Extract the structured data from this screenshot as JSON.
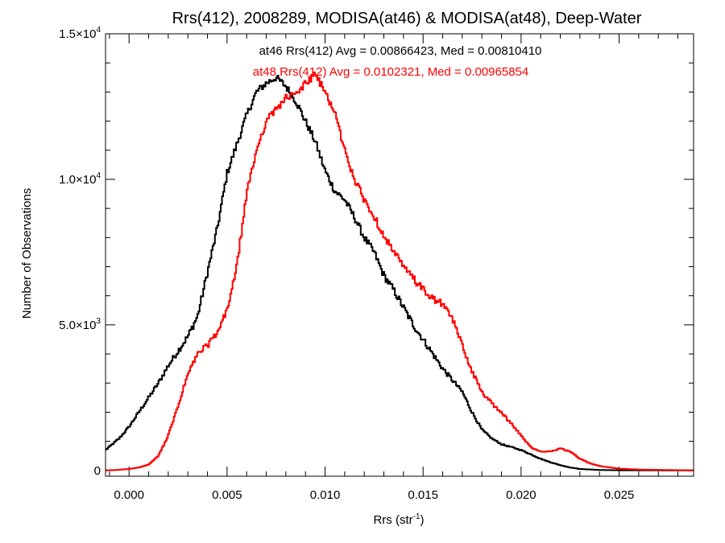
{
  "chart_data": {
    "type": "line",
    "title": "Rrs(412), 2008289, MODISA(at46) & MODISA(at48), Deep-Water",
    "xlabel": {
      "text": "Rrs (str",
      "sup": "-1",
      "tail": ")"
    },
    "ylabel": "Number of Observations",
    "xlim": [
      -0.0012,
      0.0288
    ],
    "ylim": [
      -200,
      15000
    ],
    "xticks": [
      {
        "value": 0.0,
        "label": "0.000"
      },
      {
        "value": 0.005,
        "label": "0.005"
      },
      {
        "value": 0.01,
        "label": "0.010"
      },
      {
        "value": 0.015,
        "label": "0.015"
      },
      {
        "value": 0.02,
        "label": "0.020"
      },
      {
        "value": 0.025,
        "label": "0.025"
      }
    ],
    "yticks": [
      {
        "value": 0,
        "mantissa": "0",
        "exp": ""
      },
      {
        "value": 5000,
        "mantissa": "5.0×10",
        "exp": "3"
      },
      {
        "value": 10000,
        "mantissa": "1.0×10",
        "exp": "4"
      },
      {
        "value": 15000,
        "mantissa": "1.5×10",
        "exp": "4"
      }
    ],
    "annotations": [
      {
        "text": "at46 Rrs(412) Avg = 0.00866423, Med = 0.00810410",
        "color": "#000000"
      },
      {
        "text": "at48 Rrs(412) Avg = 0.0102321, Med = 0.00965854",
        "color": "#ff0000"
      }
    ],
    "series": [
      {
        "color": "#000000",
        "points": [
          [
            -0.0012,
            700
          ],
          [
            -0.0005,
            1100
          ],
          [
            0.0,
            1500
          ],
          [
            0.0005,
            2000
          ],
          [
            0.001,
            2500
          ],
          [
            0.0015,
            3000
          ],
          [
            0.002,
            3600
          ],
          [
            0.0025,
            4100
          ],
          [
            0.003,
            4600
          ],
          [
            0.0035,
            5300
          ],
          [
            0.004,
            6800
          ],
          [
            0.0045,
            8300
          ],
          [
            0.005,
            10200
          ],
          [
            0.0055,
            11200
          ],
          [
            0.006,
            12200
          ],
          [
            0.0065,
            13000
          ],
          [
            0.007,
            13300
          ],
          [
            0.0075,
            13500
          ],
          [
            0.008,
            13200
          ],
          [
            0.0085,
            12700
          ],
          [
            0.009,
            12000
          ],
          [
            0.0095,
            11300
          ],
          [
            0.01,
            10300
          ],
          [
            0.0105,
            9600
          ],
          [
            0.011,
            9300
          ],
          [
            0.0115,
            8700
          ],
          [
            0.012,
            8000
          ],
          [
            0.0125,
            7500
          ],
          [
            0.013,
            6700
          ],
          [
            0.0135,
            6200
          ],
          [
            0.014,
            5600
          ],
          [
            0.0145,
            5000
          ],
          [
            0.015,
            4500
          ],
          [
            0.0155,
            4000
          ],
          [
            0.016,
            3500
          ],
          [
            0.0165,
            3100
          ],
          [
            0.017,
            2700
          ],
          [
            0.0175,
            2000
          ],
          [
            0.018,
            1400
          ],
          [
            0.0185,
            1100
          ],
          [
            0.019,
            900
          ],
          [
            0.0195,
            800
          ],
          [
            0.02,
            700
          ],
          [
            0.0205,
            550
          ],
          [
            0.021,
            400
          ],
          [
            0.0215,
            280
          ],
          [
            0.022,
            180
          ],
          [
            0.0225,
            100
          ],
          [
            0.023,
            50
          ],
          [
            0.024,
            15
          ],
          [
            0.025,
            5
          ],
          [
            0.0288,
            0
          ]
        ]
      },
      {
        "color": "#ff0000",
        "points": [
          [
            -0.0012,
            0
          ],
          [
            -0.0005,
            20
          ],
          [
            0.0,
            50
          ],
          [
            0.0005,
            100
          ],
          [
            0.001,
            200
          ],
          [
            0.0015,
            500
          ],
          [
            0.002,
            1200
          ],
          [
            0.0025,
            2200
          ],
          [
            0.003,
            3300
          ],
          [
            0.0035,
            4000
          ],
          [
            0.004,
            4300
          ],
          [
            0.0045,
            4700
          ],
          [
            0.005,
            5500
          ],
          [
            0.0055,
            7000
          ],
          [
            0.006,
            9500
          ],
          [
            0.0065,
            11000
          ],
          [
            0.007,
            12000
          ],
          [
            0.0075,
            12400
          ],
          [
            0.008,
            12800
          ],
          [
            0.0085,
            12900
          ],
          [
            0.009,
            13300
          ],
          [
            0.0095,
            13600
          ],
          [
            0.01,
            13000
          ],
          [
            0.0105,
            12300
          ],
          [
            0.011,
            11000
          ],
          [
            0.0115,
            10000
          ],
          [
            0.012,
            9300
          ],
          [
            0.0125,
            8700
          ],
          [
            0.013,
            8100
          ],
          [
            0.0135,
            7500
          ],
          [
            0.014,
            7000
          ],
          [
            0.0145,
            6600
          ],
          [
            0.015,
            6200
          ],
          [
            0.0155,
            5900
          ],
          [
            0.016,
            5700
          ],
          [
            0.0165,
            5200
          ],
          [
            0.017,
            4300
          ],
          [
            0.0175,
            3400
          ],
          [
            0.018,
            2700
          ],
          [
            0.0185,
            2300
          ],
          [
            0.019,
            2000
          ],
          [
            0.0195,
            1600
          ],
          [
            0.02,
            1200
          ],
          [
            0.0205,
            800
          ],
          [
            0.021,
            650
          ],
          [
            0.0215,
            650
          ],
          [
            0.022,
            750
          ],
          [
            0.0225,
            650
          ],
          [
            0.023,
            400
          ],
          [
            0.0235,
            250
          ],
          [
            0.024,
            150
          ],
          [
            0.025,
            60
          ],
          [
            0.026,
            30
          ],
          [
            0.0288,
            0
          ]
        ]
      }
    ]
  }
}
